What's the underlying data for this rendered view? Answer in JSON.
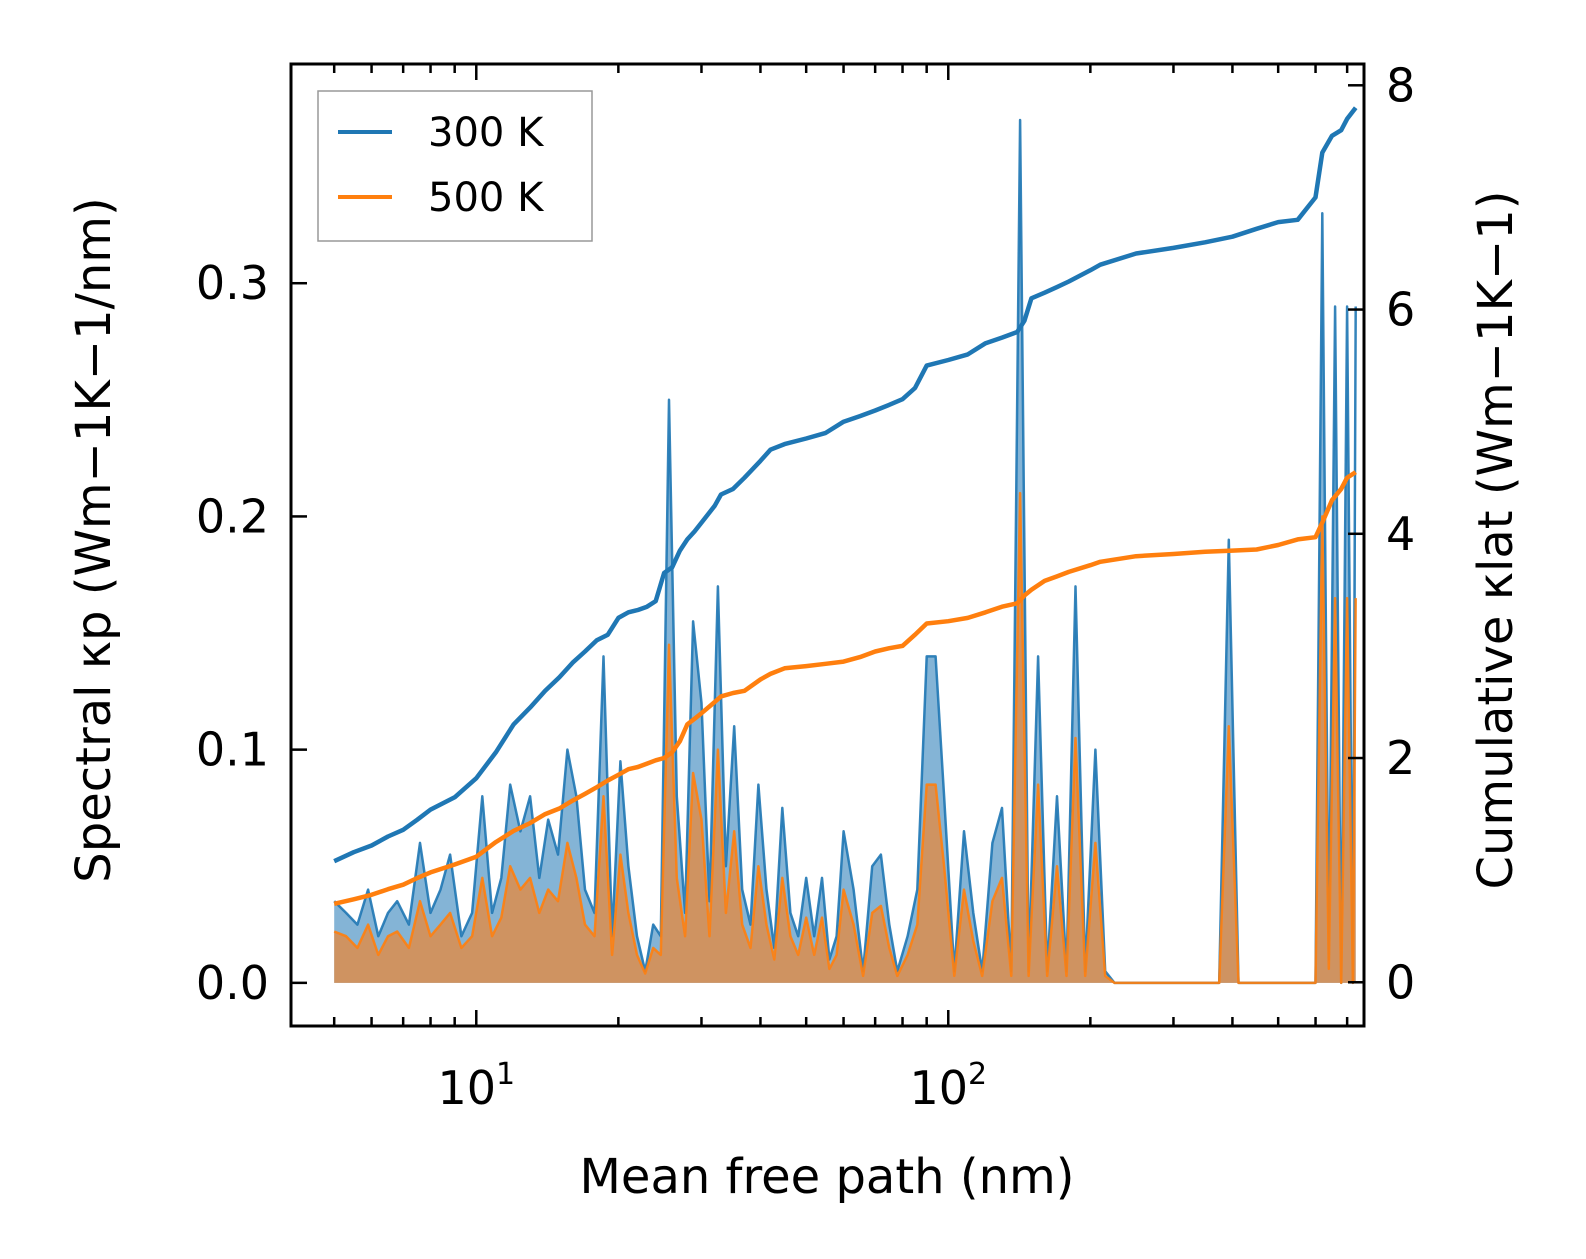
{
  "chart_data": {
    "type": "line",
    "xlabel": "Mean free path (nm)",
    "ylabel_left": "Spectral κp (Wm−1K−1/nm)",
    "ylabel_right": "Cumulative κlat (Wm−1K−1)",
    "xscale": "log",
    "xlim": [
      4.05,
      760
    ],
    "ylim_left": [
      -0.0185,
      0.394
    ],
    "ylim_right": [
      -0.39,
      8.19
    ],
    "left_ticks": [
      "0.0",
      "0.1",
      "0.2",
      "0.3"
    ],
    "left_tick_values": [
      0,
      0.1,
      0.2,
      0.3
    ],
    "right_ticks": [
      "0",
      "2",
      "4",
      "6",
      "8"
    ],
    "right_tick_values": [
      0,
      2,
      4,
      6,
      8
    ],
    "x_major_ticks": [
      10,
      100
    ],
    "x_tick_labels": [
      {
        "base": "10",
        "exp": "1"
      },
      {
        "base": "10",
        "exp": "2"
      }
    ],
    "legend": {
      "position": "top-left"
    },
    "colors": {
      "blue": "#1f77b4",
      "orange": "#ff7f0e",
      "blue_fill": "#1f77b4",
      "orange_fill": "#e8883a"
    },
    "series": [
      {
        "name": "300 K",
        "color": "#1f77b4",
        "cumulative": {
          "x": [
            5,
            5.5,
            6,
            6.5,
            7,
            7.5,
            8,
            9,
            10,
            11,
            12,
            13,
            14,
            15,
            16,
            17,
            18,
            19,
            20,
            21,
            22,
            23,
            24,
            25,
            26,
            27,
            28,
            29,
            30,
            32,
            33,
            35,
            37,
            40,
            42,
            45,
            50,
            55,
            60,
            65,
            70,
            75,
            80,
            85,
            90,
            100,
            110,
            120,
            130,
            140,
            145,
            150,
            160,
            170,
            180,
            200,
            210,
            250,
            300,
            350,
            400,
            450,
            500,
            550,
            600,
            620,
            650,
            680,
            700,
            730
          ],
          "y": [
            1.08,
            1.16,
            1.22,
            1.3,
            1.36,
            1.45,
            1.54,
            1.65,
            1.82,
            2.05,
            2.3,
            2.45,
            2.6,
            2.72,
            2.85,
            2.95,
            3.05,
            3.1,
            3.25,
            3.3,
            3.32,
            3.35,
            3.4,
            3.65,
            3.7,
            3.85,
            3.95,
            4.02,
            4.1,
            4.25,
            4.35,
            4.4,
            4.5,
            4.65,
            4.75,
            4.8,
            4.85,
            4.9,
            5,
            5.05,
            5.1,
            5.15,
            5.2,
            5.3,
            5.5,
            5.55,
            5.6,
            5.7,
            5.75,
            5.8,
            5.9,
            6.1,
            6.15,
            6.2,
            6.25,
            6.35,
            6.4,
            6.5,
            6.55,
            6.6,
            6.65,
            6.72,
            6.78,
            6.8,
            7,
            7.4,
            7.55,
            7.6,
            7.7,
            7.8
          ]
        },
        "spectral": {
          "x": [
            5,
            5.3,
            5.6,
            5.9,
            6.2,
            6.5,
            6.8,
            7.2,
            7.6,
            8,
            8.4,
            8.8,
            9.3,
            9.8,
            10.3,
            10.8,
            11.3,
            11.8,
            12.4,
            13,
            13.6,
            14.2,
            14.9,
            15.6,
            16.3,
            17,
            17.8,
            18.6,
            19.4,
            20.2,
            21,
            21.9,
            22.8,
            23.7,
            24.6,
            25.6,
            26.6,
            27.7,
            28.8,
            30,
            31.2,
            32.5,
            33.8,
            35.2,
            36.6,
            38.1,
            39.6,
            41.2,
            42.8,
            44.5,
            46.3,
            48.1,
            50,
            52,
            54,
            56,
            58,
            60,
            63,
            66,
            69,
            72,
            75,
            78,
            82,
            86,
            90,
            94,
            98,
            103,
            108,
            113,
            118,
            124,
            130,
            136,
            142,
            148,
            155,
            162,
            170,
            178,
            186,
            195,
            205,
            215,
            225,
            235,
            246,
            258,
            270,
            283,
            297,
            311,
            326,
            342,
            358,
            375,
            393,
            412,
            432,
            452,
            474,
            497,
            521,
            546,
            572,
            600,
            620,
            640,
            660,
            680,
            700,
            720,
            730
          ],
          "y": [
            0.035,
            0.03,
            0.025,
            0.04,
            0.02,
            0.03,
            0.035,
            0.025,
            0.06,
            0.03,
            0.04,
            0.055,
            0.02,
            0.03,
            0.08,
            0.03,
            0.045,
            0.085,
            0.065,
            0.08,
            0.045,
            0.07,
            0.055,
            0.1,
            0.08,
            0.04,
            0.03,
            0.14,
            0.02,
            0.095,
            0.05,
            0.02,
            0.005,
            0.025,
            0.02,
            0.25,
            0.08,
            0.03,
            0.155,
            0.12,
            0.035,
            0.17,
            0.05,
            0.11,
            0.04,
            0.025,
            0.085,
            0.04,
            0.015,
            0.075,
            0.03,
            0.02,
            0.045,
            0.02,
            0.045,
            0.01,
            0.02,
            0.065,
            0.04,
            0.005,
            0.05,
            0.055,
            0.025,
            0.005,
            0.02,
            0.04,
            0.14,
            0.14,
            0.08,
            0.005,
            0.065,
            0.03,
            0.005,
            0.06,
            0.075,
            0.005,
            0.37,
            0.005,
            0.14,
            0.005,
            0.08,
            0.005,
            0.17,
            0.005,
            0.1,
            0.005,
            0,
            0,
            0,
            0,
            0,
            0,
            0,
            0,
            0,
            0,
            0,
            0,
            0.19,
            0,
            0,
            0,
            0,
            0,
            0,
            0,
            0,
            0,
            0.33,
            0.01,
            0.29,
            0,
            0.29,
            0,
            0.29
          ]
        }
      },
      {
        "name": "500 K",
        "color": "#ff7f0e",
        "cumulative": {
          "x": [
            5,
            5.5,
            6,
            6.5,
            7,
            7.5,
            8,
            9,
            10,
            11,
            12,
            13,
            14,
            15,
            16,
            17,
            18,
            19,
            20,
            21,
            22,
            23,
            24,
            25,
            26,
            27,
            28,
            29,
            30,
            32,
            33,
            35,
            37,
            40,
            42,
            45,
            50,
            55,
            60,
            65,
            70,
            75,
            80,
            85,
            90,
            100,
            110,
            120,
            130,
            140,
            145,
            150,
            160,
            170,
            180,
            200,
            210,
            250,
            300,
            350,
            400,
            450,
            500,
            550,
            600,
            620,
            650,
            680,
            700,
            730
          ],
          "y": [
            0.7,
            0.74,
            0.78,
            0.83,
            0.87,
            0.93,
            0.98,
            1.05,
            1.12,
            1.25,
            1.35,
            1.42,
            1.5,
            1.55,
            1.62,
            1.68,
            1.74,
            1.8,
            1.85,
            1.9,
            1.92,
            1.95,
            1.98,
            2,
            2.05,
            2.15,
            2.3,
            2.35,
            2.4,
            2.5,
            2.55,
            2.58,
            2.6,
            2.7,
            2.75,
            2.8,
            2.82,
            2.84,
            2.86,
            2.9,
            2.95,
            2.98,
            3,
            3.1,
            3.2,
            3.22,
            3.25,
            3.3,
            3.35,
            3.38,
            3.45,
            3.5,
            3.58,
            3.62,
            3.66,
            3.72,
            3.75,
            3.8,
            3.82,
            3.84,
            3.85,
            3.86,
            3.9,
            3.95,
            3.97,
            4.1,
            4.3,
            4.4,
            4.5,
            4.55
          ]
        },
        "spectral": {
          "x": [
            5,
            5.3,
            5.6,
            5.9,
            6.2,
            6.5,
            6.8,
            7.2,
            7.6,
            8,
            8.4,
            8.8,
            9.3,
            9.8,
            10.3,
            10.8,
            11.3,
            11.8,
            12.4,
            13,
            13.6,
            14.2,
            14.9,
            15.6,
            16.3,
            17,
            17.8,
            18.6,
            19.4,
            20.2,
            21,
            21.9,
            22.8,
            23.7,
            24.6,
            25.6,
            26.6,
            27.7,
            28.8,
            30,
            31.2,
            32.5,
            33.8,
            35.2,
            36.6,
            38.1,
            39.6,
            41.2,
            42.8,
            44.5,
            46.3,
            48.1,
            50,
            52,
            54,
            56,
            58,
            60,
            63,
            66,
            69,
            72,
            75,
            78,
            82,
            86,
            90,
            94,
            98,
            103,
            108,
            113,
            118,
            124,
            130,
            136,
            142,
            148,
            155,
            162,
            170,
            178,
            186,
            195,
            205,
            215,
            225,
            235,
            246,
            258,
            270,
            283,
            297,
            311,
            326,
            342,
            358,
            375,
            393,
            412,
            432,
            452,
            474,
            497,
            521,
            546,
            572,
            600,
            620,
            640,
            660,
            680,
            700,
            720,
            730
          ],
          "y": [
            0.022,
            0.02,
            0.015,
            0.025,
            0.012,
            0.02,
            0.022,
            0.015,
            0.035,
            0.02,
            0.025,
            0.03,
            0.015,
            0.02,
            0.045,
            0.02,
            0.028,
            0.05,
            0.04,
            0.045,
            0.03,
            0.04,
            0.035,
            0.06,
            0.045,
            0.025,
            0.02,
            0.08,
            0.012,
            0.055,
            0.03,
            0.012,
            0.004,
            0.015,
            0.012,
            0.145,
            0.045,
            0.02,
            0.09,
            0.07,
            0.02,
            0.1,
            0.03,
            0.065,
            0.025,
            0.015,
            0.05,
            0.025,
            0.01,
            0.045,
            0.02,
            0.012,
            0.028,
            0.012,
            0.028,
            0.006,
            0.012,
            0.04,
            0.025,
            0.003,
            0.03,
            0.033,
            0.015,
            0.003,
            0.012,
            0.025,
            0.085,
            0.085,
            0.05,
            0.003,
            0.04,
            0.018,
            0.003,
            0.035,
            0.045,
            0.003,
            0.21,
            0.003,
            0.085,
            0.003,
            0.05,
            0.003,
            0.105,
            0.003,
            0.06,
            0.003,
            0,
            0,
            0,
            0,
            0,
            0,
            0,
            0,
            0,
            0,
            0,
            0,
            0.11,
            0,
            0,
            0,
            0,
            0,
            0,
            0,
            0,
            0,
            0.2,
            0.006,
            0.165,
            0,
            0.165,
            0,
            0.165
          ]
        }
      }
    ]
  }
}
